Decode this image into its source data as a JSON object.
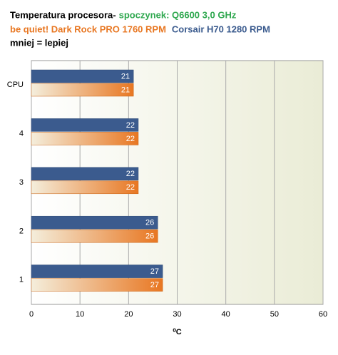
{
  "chart_data": {
    "type": "hbar",
    "title": "Temperatura procesora-",
    "subtitle": "spoczynek: Q6600 3,0 GHz",
    "annotation": "mniej = lepiej",
    "x_label": "⁰C",
    "categories": [
      "CPU",
      "4",
      "3",
      "2",
      "1"
    ],
    "series": [
      {
        "name": "Corsair H70 1280 RPM",
        "color": "#3b5b8e",
        "values": [
          21,
          22,
          22,
          26,
          27
        ]
      },
      {
        "name": "be quiet! Dark Rock PRO 1760  RPM",
        "color": "#e87722",
        "values": [
          21,
          22,
          22,
          26,
          27
        ]
      }
    ],
    "xlim": [
      0,
      60
    ],
    "xticks": [
      0,
      10,
      20,
      30,
      40,
      50,
      60
    ],
    "grid": true
  }
}
